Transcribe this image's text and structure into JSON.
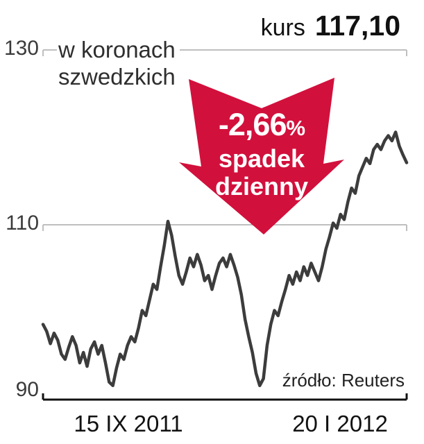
{
  "header": {
    "kurs_label": "kurs",
    "kurs_value": "117,10",
    "unit_line1": "w koronach",
    "unit_line2": "szwedzkich"
  },
  "annotation": {
    "percent": "-2,66",
    "percent_sign": "%",
    "line1": "spadek",
    "line2": "dzienny",
    "arrow_color": "#d2103c"
  },
  "source": "źródło: Reuters",
  "chart_data": {
    "type": "line",
    "title": "kurs 117,10",
    "ylabel": "w koronach szwedzkich",
    "annotations": [
      "-2,66% spadek dzienny"
    ],
    "x_tick_labels": [
      "15 IX 2011",
      "20 I 2012"
    ],
    "y_ticks": [
      130,
      110,
      90
    ],
    "ylim": [
      90,
      130
    ],
    "grid": true,
    "line_color": "#3c3c3c",
    "series": [
      {
        "name": "kurs w koronach szwedzkich",
        "values": [
          98.6,
          97.8,
          96.4,
          97.6,
          96.8,
          95.2,
          94.6,
          96.0,
          97.2,
          96.2,
          94.2,
          95.4,
          93.8,
          95.8,
          96.6,
          95.2,
          96.2,
          94.2,
          92.0,
          91.6,
          93.6,
          95.2,
          94.6,
          96.2,
          97.2,
          96.6,
          98.2,
          100.2,
          99.6,
          101.4,
          103.2,
          102.6,
          105.2,
          107.6,
          110.4,
          108.8,
          106.4,
          104.2,
          103.2,
          104.6,
          106.2,
          105.2,
          106.6,
          105.4,
          103.6,
          104.2,
          102.6,
          104.2,
          105.6,
          106.2,
          105.2,
          106.6,
          105.4,
          104.0,
          102.0,
          99.2,
          97.2,
          95.4,
          93.0,
          91.6,
          92.4,
          96.2,
          98.6,
          100.2,
          99.6,
          101.2,
          102.6,
          104.2,
          103.2,
          104.6,
          103.6,
          105.2,
          104.2,
          105.6,
          104.6,
          103.6,
          105.2,
          107.2,
          108.6,
          110.2,
          109.6,
          111.2,
          110.6,
          112.6,
          114.2,
          113.6,
          115.6,
          116.6,
          117.6,
          117.0,
          118.6,
          119.2,
          118.6,
          119.6,
          120.2,
          119.6,
          120.6,
          119.0,
          118.0,
          117.1
        ]
      }
    ]
  }
}
